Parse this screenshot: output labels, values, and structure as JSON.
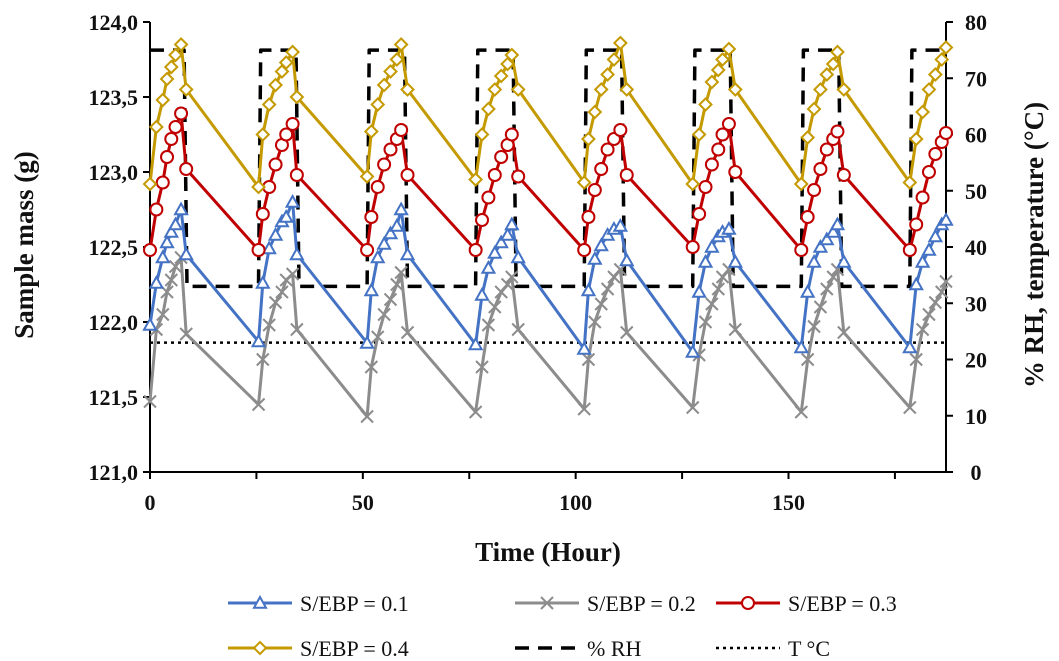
{
  "chart_data": {
    "type": "line",
    "xlabel": "Time (Hour)",
    "ylabel": "Sample mass (g)",
    "y2label": "% RH, temperature (°C)",
    "xlim": [
      0,
      187
    ],
    "ylim": [
      121.0,
      124.0
    ],
    "y2lim": [
      0,
      80
    ],
    "x_ticks": [
      "0",
      "50",
      "100",
      "150"
    ],
    "y_ticks": [
      "121,0",
      "121,5",
      "122,0",
      "122,5",
      "123,0",
      "123,5",
      "124,0"
    ],
    "y2_ticks": [
      "0",
      "10",
      "20",
      "30",
      "40",
      "50",
      "60",
      "70",
      "80"
    ],
    "legend_position": "bottom",
    "colors": {
      "s01": "#4472c4",
      "s02": "#8c8c8c",
      "s03": "#c00000",
      "s04": "#c49a00",
      "rh": "#000000",
      "t": "#000000"
    },
    "series": [
      {
        "name": "S/EBP = 0.1",
        "axis": "left",
        "marker": "triangle",
        "color_key": "s01",
        "points": [
          [
            0,
            121.98
          ],
          [
            1.5,
            122.26
          ],
          [
            3,
            122.43
          ],
          [
            4,
            122.53
          ],
          [
            5,
            122.6
          ],
          [
            6,
            122.65
          ],
          [
            7.3,
            122.75
          ],
          [
            8.5,
            122.45
          ],
          [
            25.5,
            121.87
          ],
          [
            26.5,
            122.26
          ],
          [
            28,
            122.49
          ],
          [
            29.5,
            122.58
          ],
          [
            31,
            122.67
          ],
          [
            32,
            122.7
          ],
          [
            33.5,
            122.8
          ],
          [
            34.5,
            122.45
          ],
          [
            51,
            121.86
          ],
          [
            52,
            122.21
          ],
          [
            53.5,
            122.43
          ],
          [
            55,
            122.52
          ],
          [
            56.5,
            122.59
          ],
          [
            58,
            122.64
          ],
          [
            59,
            122.75
          ],
          [
            60.5,
            122.45
          ],
          [
            76.5,
            121.85
          ],
          [
            78,
            122.18
          ],
          [
            79.5,
            122.36
          ],
          [
            81,
            122.46
          ],
          [
            82.5,
            122.53
          ],
          [
            84,
            122.58
          ],
          [
            85,
            122.65
          ],
          [
            86.5,
            122.43
          ],
          [
            102,
            121.82
          ],
          [
            103,
            122.21
          ],
          [
            104.5,
            122.42
          ],
          [
            106,
            122.51
          ],
          [
            107.5,
            122.58
          ],
          [
            109,
            122.62
          ],
          [
            110.5,
            122.64
          ],
          [
            112,
            122.41
          ],
          [
            127.5,
            121.8
          ],
          [
            129,
            122.2
          ],
          [
            130.5,
            122.4
          ],
          [
            132,
            122.5
          ],
          [
            133.5,
            122.57
          ],
          [
            134.5,
            122.6
          ],
          [
            136,
            122.62
          ],
          [
            137.5,
            122.4
          ],
          [
            153,
            121.83
          ],
          [
            154.5,
            122.2
          ],
          [
            156,
            122.4
          ],
          [
            157.5,
            122.5
          ],
          [
            159,
            122.55
          ],
          [
            160.5,
            122.6
          ],
          [
            161.5,
            122.65
          ],
          [
            163,
            122.4
          ],
          [
            178.5,
            121.83
          ],
          [
            180,
            122.25
          ],
          [
            181.5,
            122.4
          ],
          [
            183,
            122.48
          ],
          [
            184.5,
            122.57
          ],
          [
            186,
            122.65
          ],
          [
            187,
            122.68
          ]
        ]
      },
      {
        "name": "S/EBP = 0.2",
        "axis": "left",
        "marker": "x",
        "color_key": "s02",
        "points": [
          [
            0,
            121.47
          ],
          [
            1.5,
            121.95
          ],
          [
            3,
            122.05
          ],
          [
            4,
            122.2
          ],
          [
            5,
            122.28
          ],
          [
            6,
            122.37
          ],
          [
            7.3,
            122.43
          ],
          [
            8.5,
            121.92
          ],
          [
            25.5,
            121.45
          ],
          [
            26.5,
            121.75
          ],
          [
            28,
            121.98
          ],
          [
            29.5,
            122.13
          ],
          [
            31,
            122.2
          ],
          [
            32,
            122.28
          ],
          [
            33.5,
            122.32
          ],
          [
            34.5,
            121.95
          ],
          [
            51,
            121.37
          ],
          [
            52,
            121.7
          ],
          [
            53.5,
            121.9
          ],
          [
            55,
            122.05
          ],
          [
            56.5,
            122.15
          ],
          [
            58,
            122.25
          ],
          [
            59,
            122.33
          ],
          [
            60.5,
            121.93
          ],
          [
            76.5,
            121.4
          ],
          [
            78,
            121.7
          ],
          [
            79.5,
            121.98
          ],
          [
            81,
            122.1
          ],
          [
            82.5,
            122.2
          ],
          [
            84,
            122.25
          ],
          [
            85,
            122.3
          ],
          [
            86.5,
            121.95
          ],
          [
            102,
            121.42
          ],
          [
            103,
            121.75
          ],
          [
            104.5,
            122.0
          ],
          [
            106,
            122.12
          ],
          [
            107.5,
            122.22
          ],
          [
            109,
            122.3
          ],
          [
            110.5,
            122.35
          ],
          [
            112,
            121.93
          ],
          [
            127.5,
            121.43
          ],
          [
            129,
            121.78
          ],
          [
            130.5,
            122.0
          ],
          [
            132,
            122.12
          ],
          [
            133.5,
            122.22
          ],
          [
            134.5,
            122.3
          ],
          [
            136,
            122.35
          ],
          [
            137.5,
            121.95
          ],
          [
            153,
            121.4
          ],
          [
            154.5,
            121.75
          ],
          [
            156,
            121.97
          ],
          [
            157.5,
            122.1
          ],
          [
            159,
            122.22
          ],
          [
            160.5,
            122.3
          ],
          [
            161.5,
            122.35
          ],
          [
            163,
            121.93
          ],
          [
            178.5,
            121.43
          ],
          [
            180,
            121.75
          ],
          [
            181.5,
            121.95
          ],
          [
            183,
            122.05
          ],
          [
            184.5,
            122.13
          ],
          [
            186,
            122.2
          ],
          [
            187,
            122.27
          ]
        ]
      },
      {
        "name": "S/EBP = 0.3",
        "axis": "left",
        "marker": "circle",
        "color_key": "s03",
        "points": [
          [
            0,
            122.48
          ],
          [
            1.5,
            122.75
          ],
          [
            3,
            122.93
          ],
          [
            4,
            123.1
          ],
          [
            5,
            123.22
          ],
          [
            6,
            123.3
          ],
          [
            7.3,
            123.39
          ],
          [
            8.5,
            123.02
          ],
          [
            25.5,
            122.48
          ],
          [
            26.5,
            122.72
          ],
          [
            28,
            122.9
          ],
          [
            29.5,
            123.05
          ],
          [
            31,
            123.18
          ],
          [
            32,
            123.25
          ],
          [
            33.5,
            123.32
          ],
          [
            34.5,
            122.98
          ],
          [
            51,
            122.48
          ],
          [
            52,
            122.7
          ],
          [
            53.5,
            122.9
          ],
          [
            55,
            123.05
          ],
          [
            56.5,
            123.15
          ],
          [
            58,
            123.22
          ],
          [
            59,
            123.28
          ],
          [
            60.5,
            122.98
          ],
          [
            76.5,
            122.48
          ],
          [
            78,
            122.68
          ],
          [
            79.5,
            122.83
          ],
          [
            81,
            122.98
          ],
          [
            82.5,
            123.1
          ],
          [
            84,
            123.18
          ],
          [
            85,
            123.25
          ],
          [
            86.5,
            122.97
          ],
          [
            102,
            122.48
          ],
          [
            103,
            122.7
          ],
          [
            104.5,
            122.88
          ],
          [
            106,
            123.02
          ],
          [
            107.5,
            123.15
          ],
          [
            109,
            123.22
          ],
          [
            110.5,
            123.28
          ],
          [
            112,
            122.98
          ],
          [
            127.5,
            122.5
          ],
          [
            129,
            122.72
          ],
          [
            130.5,
            122.9
          ],
          [
            132,
            123.05
          ],
          [
            133.5,
            123.15
          ],
          [
            134.5,
            123.25
          ],
          [
            136,
            123.32
          ],
          [
            137.5,
            123.0
          ],
          [
            153,
            122.48
          ],
          [
            154.5,
            122.7
          ],
          [
            156,
            122.88
          ],
          [
            157.5,
            123.02
          ],
          [
            159,
            123.15
          ],
          [
            160.5,
            123.22
          ],
          [
            161.5,
            123.27
          ],
          [
            163,
            122.98
          ],
          [
            178.5,
            122.48
          ],
          [
            180,
            122.65
          ],
          [
            181.5,
            122.83
          ],
          [
            183,
            123.0
          ],
          [
            184.5,
            123.12
          ],
          [
            186,
            123.2
          ],
          [
            187,
            123.26
          ]
        ]
      },
      {
        "name": "S/EBP = 0.4",
        "axis": "left",
        "marker": "diamond",
        "color_key": "s04",
        "points": [
          [
            0,
            122.92
          ],
          [
            1.5,
            123.3
          ],
          [
            3,
            123.48
          ],
          [
            4,
            123.62
          ],
          [
            5,
            123.7
          ],
          [
            6,
            123.78
          ],
          [
            7.3,
            123.85
          ],
          [
            8.5,
            123.55
          ],
          [
            25.5,
            122.9
          ],
          [
            26.5,
            123.25
          ],
          [
            28,
            123.45
          ],
          [
            29.5,
            123.58
          ],
          [
            31,
            123.67
          ],
          [
            32,
            123.73
          ],
          [
            33.5,
            123.8
          ],
          [
            34.5,
            123.5
          ],
          [
            51,
            122.97
          ],
          [
            52,
            123.27
          ],
          [
            53.5,
            123.45
          ],
          [
            55,
            123.58
          ],
          [
            56.5,
            123.67
          ],
          [
            58,
            123.75
          ],
          [
            59,
            123.85
          ],
          [
            60.5,
            123.55
          ],
          [
            76.5,
            122.95
          ],
          [
            78,
            123.25
          ],
          [
            79.5,
            123.42
          ],
          [
            81,
            123.55
          ],
          [
            82.5,
            123.64
          ],
          [
            84,
            123.72
          ],
          [
            85,
            123.78
          ],
          [
            86.5,
            123.55
          ],
          [
            102,
            122.93
          ],
          [
            103,
            123.22
          ],
          [
            104.5,
            123.4
          ],
          [
            106,
            123.55
          ],
          [
            107.5,
            123.65
          ],
          [
            109,
            123.75
          ],
          [
            110.5,
            123.86
          ],
          [
            112,
            123.55
          ],
          [
            127.5,
            122.92
          ],
          [
            129,
            123.25
          ],
          [
            130.5,
            123.45
          ],
          [
            132,
            123.6
          ],
          [
            133.5,
            123.68
          ],
          [
            134.5,
            123.75
          ],
          [
            136,
            123.82
          ],
          [
            137.5,
            123.55
          ],
          [
            153,
            122.92
          ],
          [
            154.5,
            123.23
          ],
          [
            156,
            123.42
          ],
          [
            157.5,
            123.55
          ],
          [
            159,
            123.65
          ],
          [
            160.5,
            123.72
          ],
          [
            161.5,
            123.8
          ],
          [
            163,
            123.55
          ],
          [
            178.5,
            122.93
          ],
          [
            180,
            123.22
          ],
          [
            181.5,
            123.4
          ],
          [
            183,
            123.55
          ],
          [
            184.5,
            123.65
          ],
          [
            186,
            123.75
          ],
          [
            187,
            123.83
          ]
        ]
      },
      {
        "name": "% RH",
        "axis": "right",
        "style": "dashed",
        "color_key": "rh",
        "points": [
          [
            0,
            75
          ],
          [
            8,
            75
          ],
          [
            8.7,
            33
          ],
          [
            25.5,
            33
          ],
          [
            26,
            75
          ],
          [
            34.3,
            75
          ],
          [
            35,
            33
          ],
          [
            51,
            33
          ],
          [
            51.5,
            75
          ],
          [
            59.8,
            75
          ],
          [
            60.5,
            33
          ],
          [
            76.5,
            33
          ],
          [
            77,
            75
          ],
          [
            85.3,
            75
          ],
          [
            86,
            33
          ],
          [
            102,
            33
          ],
          [
            102.5,
            75
          ],
          [
            110.8,
            75
          ],
          [
            111.5,
            33
          ],
          [
            127.5,
            33
          ],
          [
            128,
            75
          ],
          [
            136.3,
            75
          ],
          [
            137,
            33
          ],
          [
            153,
            33
          ],
          [
            153.5,
            75
          ],
          [
            161.8,
            75
          ],
          [
            162.5,
            33
          ],
          [
            178.5,
            33
          ],
          [
            179,
            75
          ],
          [
            187,
            75
          ]
        ]
      },
      {
        "name": "T °C",
        "axis": "right",
        "style": "dotted",
        "color_key": "t",
        "points": [
          [
            0,
            23
          ],
          [
            187,
            23
          ]
        ]
      }
    ]
  }
}
